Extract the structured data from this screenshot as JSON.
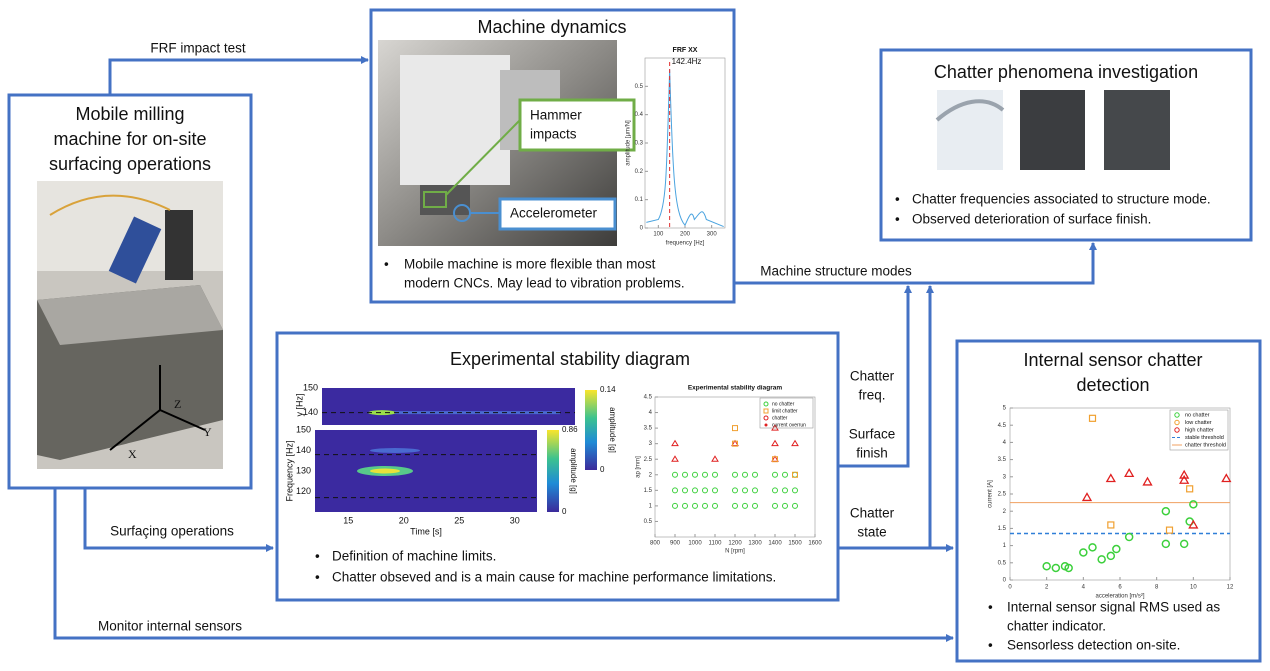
{
  "milling": {
    "title_lines": [
      "Mobile milling",
      "machine for on-site",
      "surfacing operations"
    ],
    "axes": [
      "Z",
      "Y",
      "X"
    ]
  },
  "dynamics": {
    "title": "Machine dynamics",
    "callouts": [
      "Hammer impacts",
      "Accelerometer"
    ],
    "bullets": [
      [
        "Mobile machine is more flexible than most",
        "modern  CNCs. May lead to vibration problems."
      ]
    ],
    "frf": {
      "title": "FRF XX",
      "peak_label": "142.4Hz",
      "ylabel": "amplitude [µm/N]",
      "xlabel": "frequency [Hz]",
      "xticks": [
        100,
        200,
        300
      ],
      "yticks": [
        0,
        0.1,
        0.2,
        0.3,
        0.4,
        0.5
      ]
    }
  },
  "chatter": {
    "title": "Chatter phenomena investigation",
    "bullets": [
      "Chatter frequencies associated to structure mode.",
      "Observed deterioration of surface finish."
    ]
  },
  "stability": {
    "title": "Experimental stability diagram",
    "bullets": [
      "Definition of machine limits.",
      "Chatter obseved and is a main cause for machine performance limitations."
    ],
    "spectrogram": {
      "ylabel": "Frequency [Hz]",
      "ylabel_small": "y [Hz]",
      "xlabel": "Time [s]",
      "colorbar_label": "amplitude [g]",
      "xticks": [
        15,
        20,
        25,
        30
      ],
      "yticks": [
        120,
        130,
        140,
        150
      ],
      "yticks_small": [
        140,
        150
      ],
      "colorbar_ticks": [
        0,
        0.86
      ],
      "colorbar_ticks_small": [
        0,
        0.14
      ]
    },
    "diagram": {
      "title": "Experimental stability diagram",
      "xlabel": "N [rpm]",
      "ylabel": "ap [mm]",
      "legend": [
        "no chatter",
        "limit chatter",
        "chatter",
        "current overrun"
      ],
      "xticks": [
        800,
        900,
        1000,
        1100,
        1200,
        1300,
        1400,
        1500,
        1600
      ],
      "yticks": [
        0.5,
        1,
        1.5,
        2,
        2.5,
        3,
        3.5,
        4,
        4.5
      ]
    }
  },
  "sensor": {
    "title_lines": [
      "Internal sensor chatter",
      "detection"
    ],
    "bullets": [
      [
        "Internal sensor signal RMS used as",
        "chatter indicator."
      ],
      [
        "Sensorless detection on-site."
      ]
    ],
    "plot": {
      "xlabel": "acceleration [m/s²]",
      "ylabel": "current [A]",
      "legend": [
        "no chatter",
        "low chatter",
        "high chatter",
        "stable threshold",
        "chatter threshold"
      ],
      "xticks": [
        0,
        2,
        4,
        6,
        8,
        10,
        12
      ],
      "yticks": [
        0,
        0.5,
        1,
        1.5,
        2,
        2.5,
        3,
        3.5,
        4,
        4.5,
        5
      ]
    }
  },
  "flows": {
    "frf": "FRF impact test",
    "modes": "Machine structure modes",
    "freq": [
      "Chatter",
      "freq."
    ],
    "surface": [
      "Surface",
      "finish"
    ],
    "state": [
      "Chatter",
      "state"
    ],
    "surfacing": "Surfaçing operations",
    "monitor": "Monitor  internal sensors"
  }
}
